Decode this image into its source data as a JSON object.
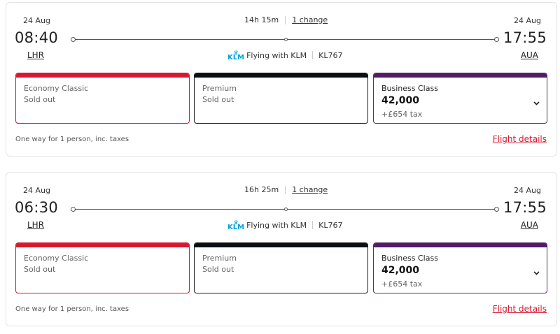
{
  "colors": {
    "economy": "#d8182e",
    "premium": "#0a0f14",
    "business": "#4f1c65",
    "link": "#d8182e",
    "airline_logo": "#00a1de"
  },
  "flights": [
    {
      "dep_date": "24 Aug",
      "arr_date": "24 Aug",
      "duration": "14h 15m",
      "changes": "1 change",
      "dep_time": "08:40",
      "arr_time": "17:55",
      "dep_code": "LHR",
      "arr_code": "AUA",
      "airline_logo_text": "KLM",
      "airline_logo_icon": "crown-icon",
      "airline_text": "Flying with KLM",
      "flight_no": "KL767",
      "fares": {
        "economy": {
          "class": "Economy Classic",
          "status": "Sold out"
        },
        "premium": {
          "class": "Premium",
          "status": "Sold out"
        },
        "business": {
          "class": "Business Class",
          "points": "42,000",
          "tax": "+£654 tax",
          "expand_icon": "chevron-down-icon"
        }
      },
      "footer": "One way for 1 person, inc. taxes",
      "details_link": "Flight details"
    },
    {
      "dep_date": "24 Aug",
      "arr_date": "24 Aug",
      "duration": "16h 25m",
      "changes": "1 change",
      "dep_time": "06:30",
      "arr_time": "17:55",
      "dep_code": "LHR",
      "arr_code": "AUA",
      "airline_logo_text": "KLM",
      "airline_logo_icon": "crown-icon",
      "airline_text": "Flying with KLM",
      "flight_no": "KL767",
      "fares": {
        "economy": {
          "class": "Economy Classic",
          "status": "Sold out"
        },
        "premium": {
          "class": "Premium",
          "status": "Sold out"
        },
        "business": {
          "class": "Business Class",
          "points": "42,000",
          "tax": "+£654 tax",
          "expand_icon": "chevron-down-icon"
        }
      },
      "footer": "One way for 1 person, inc. taxes",
      "details_link": "Flight details"
    }
  ]
}
